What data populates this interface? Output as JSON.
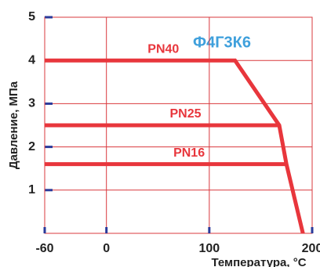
{
  "chart_data": {
    "type": "line",
    "annotation": "Ф4Г3К6",
    "xlabel": "Температура, °C",
    "ylabel": "Давление, МПа",
    "xlim": [
      -60,
      200
    ],
    "xticks": [
      -60,
      0,
      100,
      200
    ],
    "ylim": [
      0,
      5
    ],
    "yticks": [
      1,
      2,
      3,
      4,
      5
    ],
    "grid": true,
    "series": [
      {
        "name": "PN40",
        "color": "#e8363c",
        "x": [
          -60,
          125,
          168,
          175,
          191
        ],
        "values": [
          4,
          4,
          2.5,
          1.6,
          0
        ]
      },
      {
        "name": "PN25",
        "color": "#e8363c",
        "x": [
          -60,
          168
        ],
        "values": [
          2.5,
          2.5
        ]
      },
      {
        "name": "PN16",
        "color": "#e8363c",
        "x": [
          -60,
          175
        ],
        "values": [
          1.6,
          1.6
        ]
      }
    ]
  }
}
